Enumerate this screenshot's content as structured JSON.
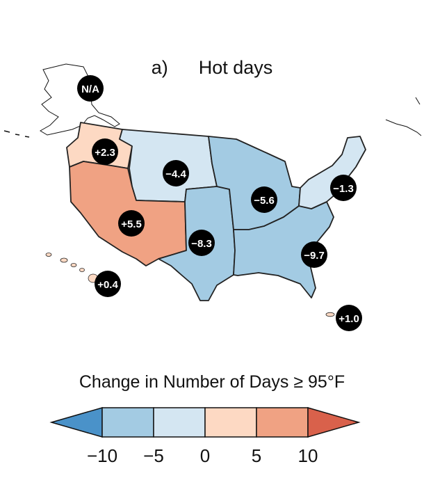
{
  "title": {
    "panel": "a)",
    "name": "Hot days"
  },
  "colors": {
    "bin_lt_m10": "#4a92c9",
    "bin_m10_m5": "#a3cbe3",
    "bin_m5_0": "#d4e6f2",
    "bin_0_5": "#fdd9c3",
    "bin_5_10": "#f0a283",
    "bin_gt_10": "#d9614b",
    "badge": "#000000",
    "badge_text": "#ffffff"
  },
  "regions": [
    {
      "name": "Northwest",
      "value": "+2.3",
      "bin": "bin_0_5"
    },
    {
      "name": "Northern Great Plains",
      "value": "−4.4",
      "bin": "bin_m5_0"
    },
    {
      "name": "Southwest",
      "value": "+5.5",
      "bin": "bin_5_10"
    },
    {
      "name": "Southern Great Plains",
      "value": "−8.3",
      "bin": "bin_m10_m5"
    },
    {
      "name": "Midwest",
      "value": "−5.6",
      "bin": "bin_m10_m5"
    },
    {
      "name": "Southeast",
      "value": "−9.7",
      "bin": "bin_m10_m5"
    },
    {
      "name": "Northeast",
      "value": "−1.3",
      "bin": "bin_m5_0"
    },
    {
      "name": "Alaska",
      "value": "N/A",
      "bin": null
    },
    {
      "name": "Hawaii",
      "value": "+0.4",
      "bin": "bin_0_5"
    },
    {
      "name": "Puerto Rico",
      "value": "+1.0",
      "bin": "bin_0_5"
    }
  ],
  "legend": {
    "title": "Change in Number of Days ≥ 95°F",
    "ticks": [
      "−10",
      "−5",
      "0",
      "5",
      "10"
    ],
    "bins": [
      "bin_lt_m10",
      "bin_m10_m5",
      "bin_m5_0",
      "bin_0_5",
      "bin_5_10",
      "bin_gt_10"
    ]
  }
}
